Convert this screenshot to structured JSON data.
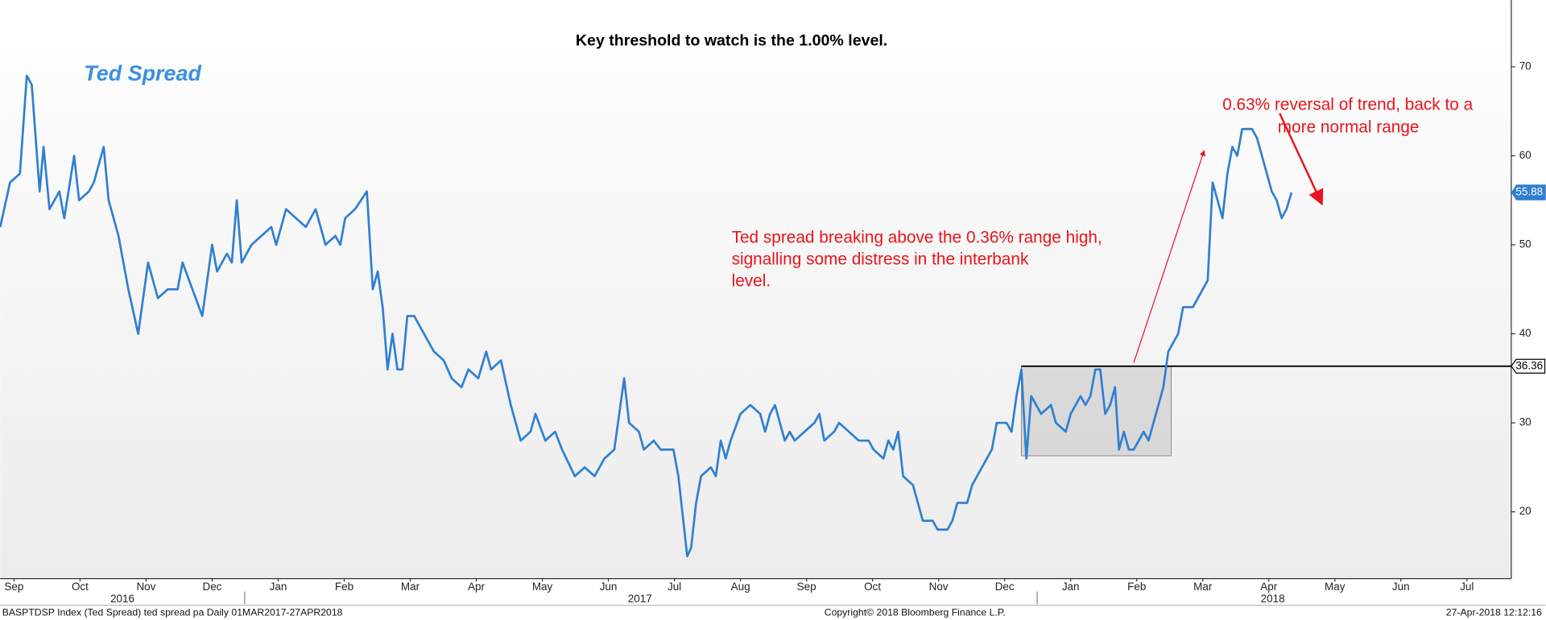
{
  "chart_data": {
    "type": "line",
    "title": "Key threshold to watch is the 1.00% level.",
    "series": [
      {
        "name": "Ted Spread",
        "color": "#2f7fd1",
        "x": [
          0,
          1,
          2,
          2.7,
          3.2,
          4,
          4.4,
          5,
          6,
          6.5,
          7.5,
          8,
          9,
          9.5,
          10.5,
          11,
          12,
          13,
          14,
          15,
          16,
          17,
          18,
          18.5,
          19.5,
          20.5,
          21.5,
          22,
          23,
          23.5,
          24,
          24.5,
          25.5,
          26.5,
          27.5,
          28,
          29,
          30,
          31,
          32,
          33,
          34,
          34.5,
          35,
          36,
          37.2,
          37.8,
          38.3,
          38.8,
          39.3,
          39.8,
          40.3,
          40.8,
          41.3,
          42,
          43,
          44,
          45,
          45.8,
          46.8,
          47.5,
          48.5,
          49.3,
          49.8,
          50.8,
          51.8,
          52.8,
          53.8,
          54.3,
          55.3,
          56.3,
          57,
          58.3,
          59.3,
          60.3,
          61.3,
          62.3,
          62.8,
          63.3,
          63.8,
          64.8,
          65.3,
          66.3,
          67,
          68.3,
          68.8,
          69.3,
          69.7,
          70.1,
          70.6,
          71.1,
          72.1,
          72.6,
          73.1,
          73.6,
          74.1,
          75.1,
          76.1,
          77.1,
          77.6,
          78.1,
          78.6,
          79.6,
          80.1,
          80.6,
          81.6,
          82.6,
          83.1,
          83.6,
          84.6,
          85.1,
          86.1,
          87.1,
          88.1,
          88.6,
          89.6,
          90.1,
          90.6,
          91.1,
          91.6,
          92.6,
          93.1,
          93.6,
          94.6,
          95.1,
          96.1,
          96.6,
          97.1,
          98.1,
          98.6,
          99.6,
          100.6,
          101.1,
          102.1,
          102.6,
          103.1,
          103.6,
          104.1,
          104.6,
          105.6,
          106.6,
          107.1,
          108.1,
          108.6,
          109.6,
          110.1,
          110.6,
          111.1,
          111.6,
          112.1,
          112.6,
          113.1,
          113.5,
          114,
          114.5,
          115,
          116,
          116.5,
          117,
          118,
          118.5,
          119,
          119.5,
          120,
          121,
          121.5,
          122,
          122.5,
          123,
          123.5,
          124,
          124.5,
          125,
          125.5,
          126,
          127,
          127.5,
          128,
          128.5,
          129,
          129.5,
          130,
          130.5,
          131
        ],
        "values": [
          52,
          57,
          58,
          69,
          68,
          56,
          61,
          54,
          56,
          53,
          60,
          55,
          56,
          57,
          61,
          55,
          51,
          45,
          40,
          48,
          44,
          45,
          45,
          48,
          45,
          42,
          50,
          47,
          49,
          48,
          55,
          48,
          50,
          51,
          52,
          50,
          54,
          53,
          52,
          54,
          50,
          51,
          50,
          53,
          54,
          56,
          45,
          47,
          43,
          36,
          40,
          36,
          36,
          42,
          42,
          40,
          38,
          37,
          35,
          34,
          36,
          35,
          38,
          36,
          37,
          32,
          28,
          29,
          31,
          28,
          29,
          27,
          24,
          25,
          24,
          26,
          27,
          31,
          35,
          30,
          29,
          27,
          28,
          27,
          27,
          24,
          19,
          15,
          16,
          21,
          24,
          25,
          24,
          28,
          26,
          28,
          31,
          32,
          31,
          29,
          31,
          32,
          28,
          29,
          28,
          29,
          30,
          31,
          28,
          29,
          30,
          29,
          28,
          28,
          27,
          26,
          28,
          27,
          29,
          24,
          23,
          21,
          19,
          19,
          18,
          18,
          19,
          21,
          21,
          23,
          25,
          27,
          30,
          30,
          29,
          33,
          36,
          26,
          33,
          31,
          32,
          30,
          29,
          31,
          33,
          32,
          33,
          36,
          36,
          31,
          32,
          34,
          27,
          29,
          27,
          27,
          29,
          28,
          30,
          34,
          38,
          39,
          40,
          43,
          43,
          44,
          45,
          46,
          57,
          55,
          53,
          58,
          61,
          60,
          63,
          63,
          62,
          60,
          58,
          56,
          55,
          53,
          54,
          55.88
        ]
      }
    ],
    "xlim": [
      0,
      153.3
    ],
    "xticks": [
      {
        "value": 1.4,
        "label": "Sep"
      },
      {
        "value": 8.1,
        "label": "Oct"
      },
      {
        "value": 14.8,
        "label": "Nov"
      },
      {
        "value": 21.5,
        "label": "Dec"
      },
      {
        "value": 28.2,
        "label": "Jan"
      },
      {
        "value": 34.9,
        "label": "Feb"
      },
      {
        "value": 41.6,
        "label": "Mar"
      },
      {
        "value": 48.3,
        "label": "Apr"
      },
      {
        "value": 55.0,
        "label": "May"
      },
      {
        "value": 61.7,
        "label": "Jun"
      },
      {
        "value": 68.4,
        "label": "Jul"
      },
      {
        "value": 75.1,
        "label": "Aug"
      },
      {
        "value": 81.8,
        "label": "Sep"
      },
      {
        "value": 88.5,
        "label": "Oct"
      },
      {
        "value": 95.2,
        "label": "Nov"
      },
      {
        "value": 101.9,
        "label": "Dec"
      },
      {
        "value": 108.6,
        "label": "Jan"
      },
      {
        "value": 115.3,
        "label": "Feb"
      },
      {
        "value": 122.0,
        "label": "Mar"
      },
      {
        "value": 128.7,
        "label": "Apr"
      },
      {
        "value": 135.4,
        "label": "May"
      },
      {
        "value": 142.1,
        "label": "Jun"
      },
      {
        "value": 148.8,
        "label": "Jul"
      }
    ],
    "year_ticks": [
      {
        "value": 12.4,
        "label": "2016"
      },
      {
        "value": 64.9,
        "label": "2017"
      },
      {
        "value": 129.1,
        "label": "2018"
      }
    ],
    "ylim": [
      12.5,
      77.5
    ],
    "yticks": [
      20,
      30,
      40,
      50,
      60,
      70
    ],
    "threshold": 36.36,
    "range_box": {
      "x": [
        103.6,
        118.8
      ],
      "y_low": 26.3
    },
    "annotations": [
      {
        "lines": [
          "Ted spread breaking above the 0.36% range high,",
          "signalling some distress in the interbank",
          "level."
        ]
      },
      {
        "lines": [
          "0.63%  reversal of trend, back to a",
          "more normal range"
        ]
      }
    ],
    "footer": {
      "left": "BASPTDSP Index (Ted Spread) ted spread pa  Daily 01MAR2017-27APR2018",
      "center": "Copyright© 2018 Bloomberg Finance L.P.",
      "right": "27-Apr-2018 12:12:16"
    }
  }
}
